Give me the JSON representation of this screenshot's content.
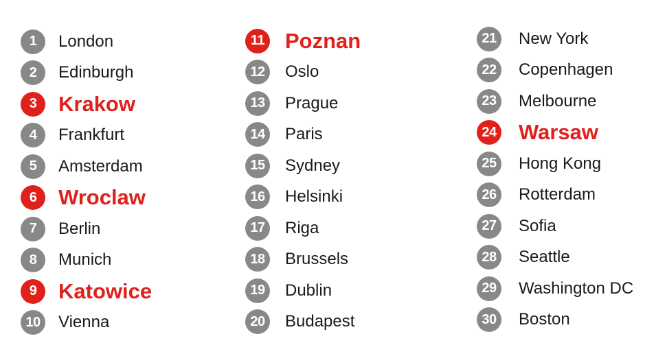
{
  "colors": {
    "highlight": "#e0201b",
    "badge_default": "#888888",
    "text": "#1a1a1a"
  },
  "columns": [
    {
      "items": [
        {
          "rank": "1",
          "city": "London",
          "highlight": false
        },
        {
          "rank": "2",
          "city": "Edinburgh",
          "highlight": false
        },
        {
          "rank": "3",
          "city": "Krakow",
          "highlight": true
        },
        {
          "rank": "4",
          "city": "Frankfurt",
          "highlight": false
        },
        {
          "rank": "5",
          "city": "Amsterdam",
          "highlight": false
        },
        {
          "rank": "6",
          "city": "Wroclaw",
          "highlight": true
        },
        {
          "rank": "7",
          "city": "Berlin",
          "highlight": false
        },
        {
          "rank": "8",
          "city": "Munich",
          "highlight": false
        },
        {
          "rank": "9",
          "city": "Katowice",
          "highlight": true
        },
        {
          "rank": "10",
          "city": "Vienna",
          "highlight": false
        }
      ]
    },
    {
      "items": [
        {
          "rank": "11",
          "city": "Poznan",
          "highlight": true
        },
        {
          "rank": "12",
          "city": "Oslo",
          "highlight": false
        },
        {
          "rank": "13",
          "city": "Prague",
          "highlight": false
        },
        {
          "rank": "14",
          "city": "Paris",
          "highlight": false
        },
        {
          "rank": "15",
          "city": "Sydney",
          "highlight": false
        },
        {
          "rank": "16",
          "city": "Helsinki",
          "highlight": false
        },
        {
          "rank": "17",
          "city": "Riga",
          "highlight": false
        },
        {
          "rank": "18",
          "city": "Brussels",
          "highlight": false
        },
        {
          "rank": "19",
          "city": "Dublin",
          "highlight": false
        },
        {
          "rank": "20",
          "city": "Budapest",
          "highlight": false
        }
      ]
    },
    {
      "items": [
        {
          "rank": "21",
          "city": "New York",
          "highlight": false
        },
        {
          "rank": "22",
          "city": "Copenhagen",
          "highlight": false
        },
        {
          "rank": "23",
          "city": "Melbourne",
          "highlight": false
        },
        {
          "rank": "24",
          "city": "Warsaw",
          "highlight": true
        },
        {
          "rank": "25",
          "city": "Hong Kong",
          "highlight": false
        },
        {
          "rank": "26",
          "city": "Rotterdam",
          "highlight": false
        },
        {
          "rank": "27",
          "city": "Sofia",
          "highlight": false
        },
        {
          "rank": "28",
          "city": "Seattle",
          "highlight": false
        },
        {
          "rank": "29",
          "city": "Washington DC",
          "highlight": false
        },
        {
          "rank": "30",
          "city": "Boston",
          "highlight": false
        }
      ]
    }
  ]
}
